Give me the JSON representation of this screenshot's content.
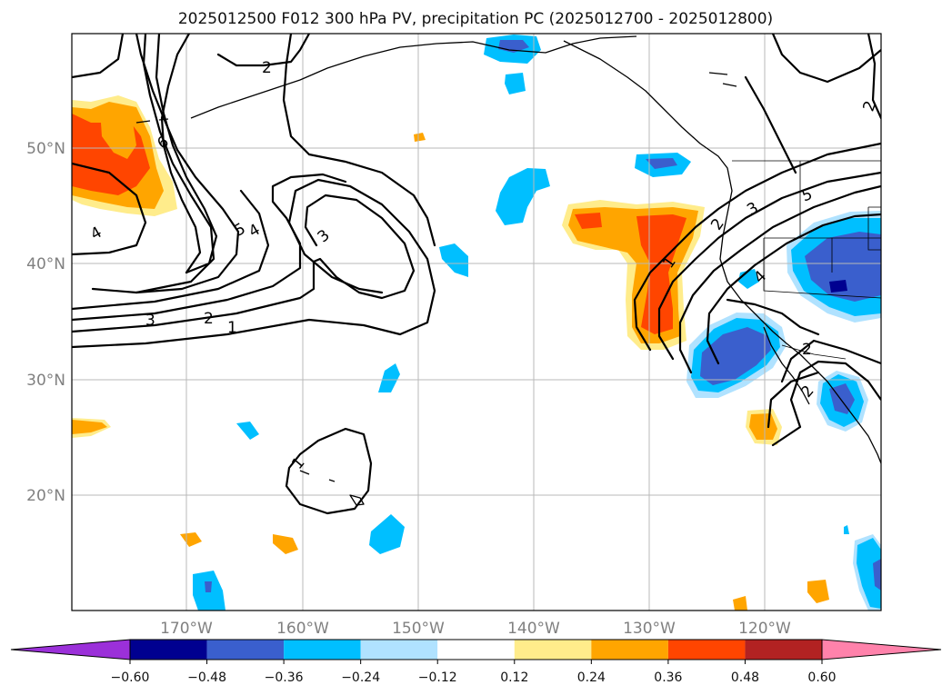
{
  "title": "2025012500 F012 300 hPa PV, precipitation PC (2025012700 - 2025012800)",
  "lat_labels": [
    "50°N",
    "40°N",
    "30°N",
    "20°N"
  ],
  "lon_labels": [
    "170°W",
    "160°W",
    "150°W",
    "140°W",
    "130°W",
    "120°W"
  ],
  "colorbar": {
    "ticks": [
      "−0.60",
      "−0.48",
      "−0.36",
      "−0.24",
      "−0.12",
      "0.12",
      "0.24",
      "0.36",
      "0.48",
      "0.60"
    ],
    "colors": [
      "#9b30d9",
      "#000090",
      "#3a5fcd",
      "#00bfff",
      "#b0e2ff",
      "#ffffff",
      "#ffec8b",
      "#ffa500",
      "#ff4500",
      "#b22222",
      "#ff82ab"
    ]
  },
  "contour_labels": [
    "2",
    "6",
    "5",
    "4",
    "4",
    "3",
    "3",
    "2",
    "1",
    "1",
    "2",
    "3",
    "5",
    "2",
    "1",
    "4",
    "2",
    "2"
  ],
  "colors": {
    "grid": "#b8b8b8",
    "axis_text": "#808080"
  }
}
